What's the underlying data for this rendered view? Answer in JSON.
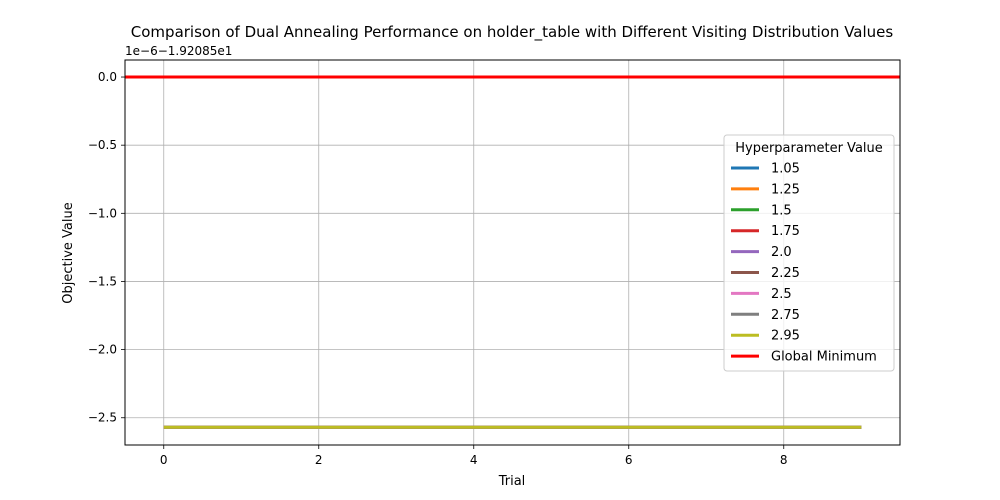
{
  "chart_data": {
    "type": "line",
    "title": "Comparison of Dual Annealing Performance on holder_table with Different Visiting Distribution Values",
    "xlabel": "Trial",
    "ylabel": "Objective Value",
    "offset_text": "1e−6−1.92085e1",
    "xlim": [
      -0.5,
      9.5
    ],
    "ylim": [
      -2.7,
      0.125
    ],
    "xticks": [
      0,
      2,
      4,
      6,
      8
    ],
    "xtick_labels": [
      "0",
      "2",
      "4",
      "6",
      "8"
    ],
    "yticks": [
      0.0,
      -0.5,
      -1.0,
      -1.5,
      -2.0,
      -2.5
    ],
    "ytick_labels": [
      "0.0",
      "−0.5",
      "−1.0",
      "−1.5",
      "−2.0",
      "−2.5"
    ],
    "grid": true,
    "legend": {
      "title": "Hyperparameter Value",
      "placement": "center-right"
    },
    "x": [
      0,
      1,
      2,
      3,
      4,
      5,
      6,
      7,
      8,
      9
    ],
    "series": [
      {
        "name": "1.05",
        "color": "#1f77b4",
        "values": [
          -2.57,
          -2.57,
          -2.57,
          -2.57,
          -2.57,
          -2.57,
          -2.57,
          -2.57,
          -2.57,
          -2.57
        ]
      },
      {
        "name": "1.25",
        "color": "#ff7f0e",
        "values": [
          -2.57,
          -2.57,
          -2.57,
          -2.57,
          -2.57,
          -2.57,
          -2.57,
          -2.57,
          -2.57,
          -2.57
        ]
      },
      {
        "name": "1.5",
        "color": "#2ca02c",
        "values": [
          -2.57,
          -2.57,
          -2.57,
          -2.57,
          -2.57,
          -2.57,
          -2.57,
          -2.57,
          -2.57,
          -2.57
        ]
      },
      {
        "name": "1.75",
        "color": "#d62728",
        "values": [
          -2.57,
          -2.57,
          -2.57,
          -2.57,
          -2.57,
          -2.57,
          -2.57,
          -2.57,
          -2.57,
          -2.57
        ]
      },
      {
        "name": "2.0",
        "color": "#9467bd",
        "values": [
          -2.57,
          -2.57,
          -2.57,
          -2.57,
          -2.57,
          -2.57,
          -2.57,
          -2.57,
          -2.57,
          -2.57
        ]
      },
      {
        "name": "2.25",
        "color": "#8c564b",
        "values": [
          -2.57,
          -2.57,
          -2.57,
          -2.57,
          -2.57,
          -2.57,
          -2.57,
          -2.57,
          -2.57,
          -2.57
        ]
      },
      {
        "name": "2.5",
        "color": "#e377c2",
        "values": [
          -2.57,
          -2.57,
          -2.57,
          -2.57,
          -2.57,
          -2.57,
          -2.57,
          -2.57,
          -2.57,
          -2.57
        ]
      },
      {
        "name": "2.75",
        "color": "#7f7f7f",
        "values": [
          -2.57,
          -2.57,
          -2.57,
          -2.57,
          -2.57,
          -2.57,
          -2.57,
          -2.57,
          -2.57,
          -2.57
        ]
      },
      {
        "name": "2.95",
        "color": "#bcbd22",
        "values": [
          -2.57,
          -2.57,
          -2.57,
          -2.57,
          -2.57,
          -2.57,
          -2.57,
          -2.57,
          -2.57,
          -2.57
        ]
      }
    ],
    "reference_line": {
      "name": "Global Minimum",
      "color": "#ff0000",
      "value": 0.0
    }
  }
}
